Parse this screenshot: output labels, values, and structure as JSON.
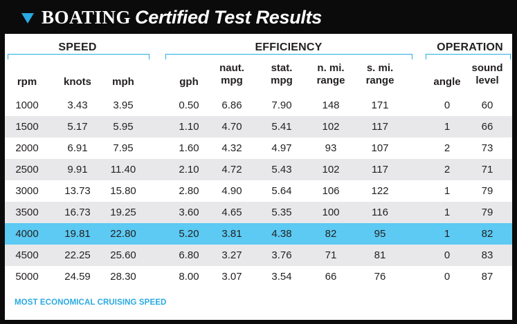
{
  "header": {
    "brand": "BOATING",
    "subtitle": "Certified Test Results"
  },
  "groups": [
    {
      "key": "speed",
      "label": "SPEED"
    },
    {
      "key": "efficiency",
      "label": "EFFICIENCY"
    },
    {
      "key": "operation",
      "label": "OPERATION"
    }
  ],
  "columns": [
    {
      "key": "rpm",
      "line1": "rpm",
      "line2": ""
    },
    {
      "key": "knots",
      "line1": "knots",
      "line2": ""
    },
    {
      "key": "mph",
      "line1": "mph",
      "line2": ""
    },
    {
      "key": "gph",
      "line1": "gph",
      "line2": ""
    },
    {
      "key": "naut_mpg",
      "line1": "naut.",
      "line2": "mpg"
    },
    {
      "key": "stat_mpg",
      "line1": "stat.",
      "line2": "mpg"
    },
    {
      "key": "nmi_range",
      "line1": "n. mi.",
      "line2": "range"
    },
    {
      "key": "smi_range",
      "line1": "s. mi.",
      "line2": "range"
    },
    {
      "key": "angle",
      "line1": "angle",
      "line2": ""
    },
    {
      "key": "sound",
      "line1": "sound",
      "line2": "level"
    }
  ],
  "rows": [
    [
      "1000",
      "3.43",
      "3.95",
      "0.50",
      "6.86",
      "7.90",
      "148",
      "171",
      "0",
      "60"
    ],
    [
      "1500",
      "5.17",
      "5.95",
      "1.10",
      "4.70",
      "5.41",
      "102",
      "117",
      "1",
      "66"
    ],
    [
      "2000",
      "6.91",
      "7.95",
      "1.60",
      "4.32",
      "4.97",
      "93",
      "107",
      "2",
      "73"
    ],
    [
      "2500",
      "9.91",
      "11.40",
      "2.10",
      "4.72",
      "5.43",
      "102",
      "117",
      "2",
      "71"
    ],
    [
      "3000",
      "13.73",
      "15.80",
      "2.80",
      "4.90",
      "5.64",
      "106",
      "122",
      "1",
      "79"
    ],
    [
      "3500",
      "16.73",
      "19.25",
      "3.60",
      "4.65",
      "5.35",
      "100",
      "116",
      "1",
      "79"
    ],
    [
      "4000",
      "19.81",
      "22.80",
      "5.20",
      "3.81",
      "4.38",
      "82",
      "95",
      "1",
      "82"
    ],
    [
      "4500",
      "22.25",
      "25.60",
      "6.80",
      "3.27",
      "3.76",
      "71",
      "81",
      "0",
      "83"
    ],
    [
      "5000",
      "24.59",
      "28.30",
      "8.00",
      "3.07",
      "3.54",
      "66",
      "76",
      "0",
      "87"
    ]
  ],
  "highlight_rpm": "4000",
  "footnote": "MOST ECONOMICAL CRUISING SPEED",
  "colors": {
    "header_bg": "#0b0b0b",
    "accent": "#29aae2",
    "highlight": "#5ccaf3",
    "shade": "#e8e8ea"
  }
}
